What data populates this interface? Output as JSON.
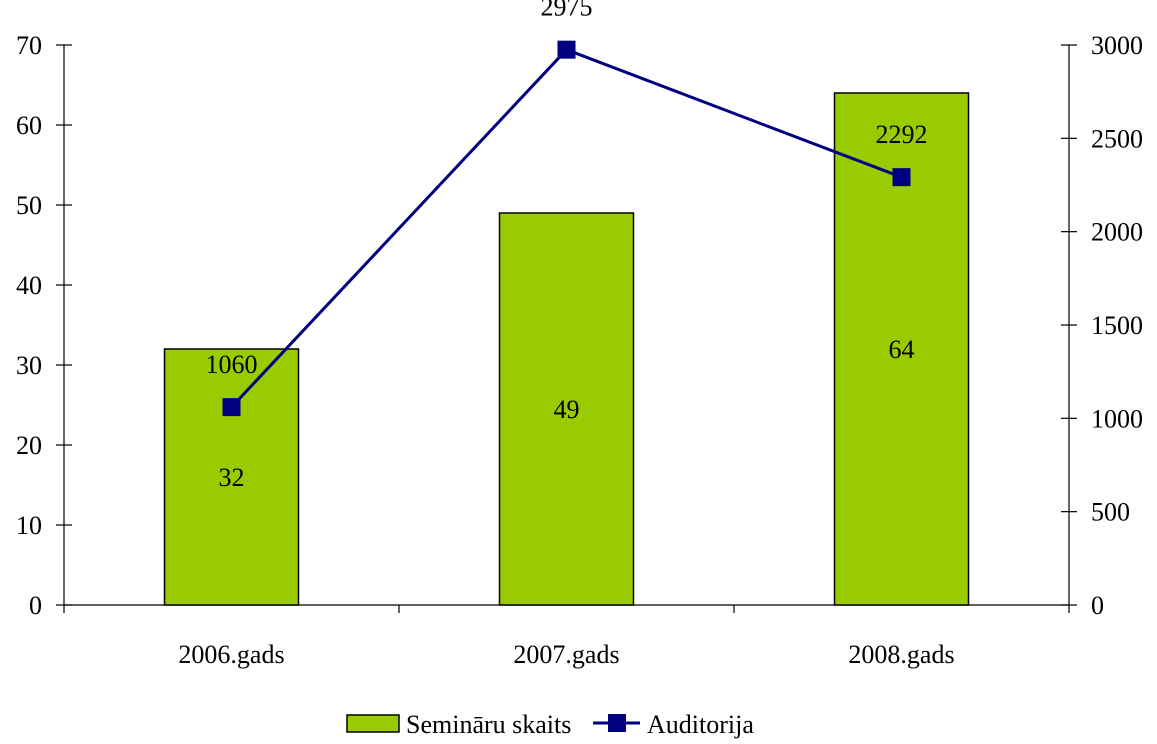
{
  "chart_data": {
    "type": "bar",
    "categories": [
      "2006.gads",
      "2007.gads",
      "2008.gads"
    ],
    "series": [
      {
        "name": "Semināru skaits",
        "type": "bar",
        "axis": "left",
        "values": [
          32,
          49,
          64
        ],
        "color": "#99cc00"
      },
      {
        "name": "Auditorija",
        "type": "line",
        "axis": "right",
        "values": [
          1060,
          2975,
          2292
        ],
        "color": "#000080"
      }
    ],
    "y_left": {
      "min": 0,
      "max": 70,
      "step": 10,
      "ticks": [
        "0",
        "10",
        "20",
        "30",
        "40",
        "50",
        "60",
        "70"
      ]
    },
    "y_right": {
      "min": 0,
      "max": 3000,
      "step": 500,
      "ticks": [
        "0",
        "500",
        "1000",
        "1500",
        "2000",
        "2500",
        "3000"
      ]
    },
    "data_labels": true,
    "grid": false,
    "legend_position": "bottom"
  }
}
